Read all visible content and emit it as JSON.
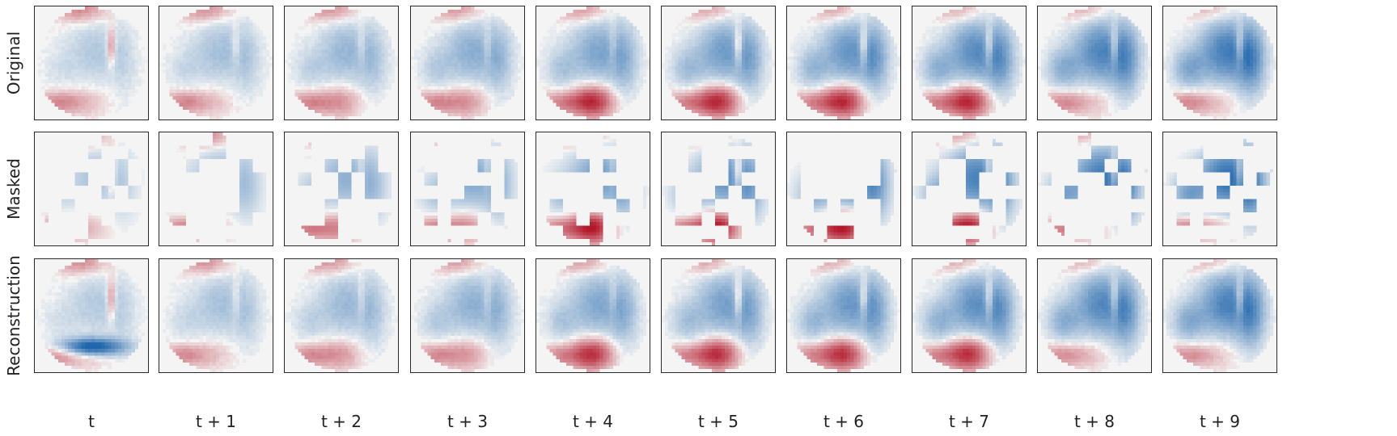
{
  "rows": [
    {
      "label": "Original"
    },
    {
      "label": "Masked"
    },
    {
      "label": "Reconstruction"
    }
  ],
  "columns": [
    {
      "label": "t"
    },
    {
      "label": "t + 1"
    },
    {
      "label": "t + 2"
    },
    {
      "label": "t + 3"
    },
    {
      "label": "t + 4"
    },
    {
      "label": "t + 5"
    },
    {
      "label": "t + 6"
    },
    {
      "label": "t + 7"
    },
    {
      "label": "t + 8"
    },
    {
      "label": "t + 9"
    }
  ],
  "colormap": {
    "negative": "#2166ac",
    "neutral": "#f4f4f4",
    "positive": "#b2182b"
  }
}
